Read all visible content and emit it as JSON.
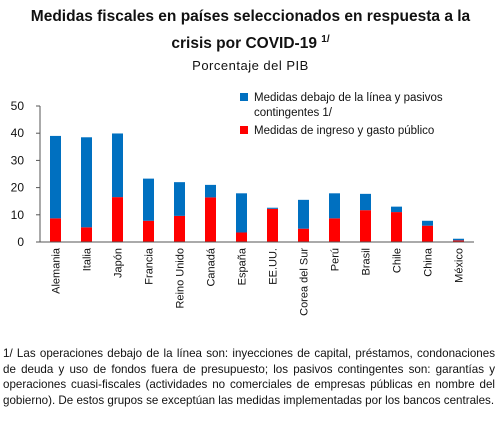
{
  "header": {
    "title_line1": "Medidas fiscales en países seleccionados en respuesta a la",
    "title_line2": "crisis por COVID-19",
    "title_note_mark": "1/",
    "subtitle": "Porcentaje del PIB"
  },
  "chart_data": {
    "type": "bar",
    "stacked": true,
    "title": "Medidas fiscales en países seleccionados en respuesta a la crisis por COVID-19",
    "subtitle": "Porcentaje del PIB",
    "categories": [
      "Alemania",
      "Italia",
      "Japón",
      "Francia",
      "Reino Unido",
      "Canadá",
      "España",
      "EE.UU.",
      "Corea del Sur",
      "Perú",
      "Brasil",
      "Chile",
      "China",
      "México"
    ],
    "series": [
      {
        "name": "Medidas de  ingreso y gasto público",
        "color": "#ff0000",
        "values": [
          8.7,
          5.4,
          16.5,
          7.8,
          9.6,
          16.4,
          3.5,
          12.2,
          4.9,
          8.7,
          11.7,
          11.0,
          6.0,
          0.6
        ]
      },
      {
        "name": "Medidas debajo de la línea y pasivos contingentes 1/",
        "color": "#0070c0",
        "values": [
          30.3,
          33.1,
          23.4,
          15.5,
          12.4,
          4.6,
          14.4,
          0.4,
          10.6,
          9.2,
          6.0,
          2.0,
          1.8,
          0.6
        ]
      }
    ],
    "legend_order": [
      1,
      0
    ],
    "legend_lines": [
      [
        "Medidas debajo de la línea y pasivos",
        "contingentes 1/"
      ],
      [
        "Medidas de  ingreso y gasto público"
      ]
    ],
    "ylim": [
      0,
      50
    ],
    "yticks": [
      0,
      10,
      20,
      30,
      40,
      50
    ],
    "legend_position": "top-right",
    "grid": false
  },
  "footnote": "1/ Las operaciones debajo de la línea son: inyecciones de capital, préstamos, condonaciones de deuda y uso de fondos fuera de presupuesto; los pasivos contingentes son: garantías y operaciones cuasi-fiscales (actividades no comerciales de empresas públicas en nombre del gobierno). De estos grupos se exceptúan las medidas implementadas por los bancos centrales."
}
